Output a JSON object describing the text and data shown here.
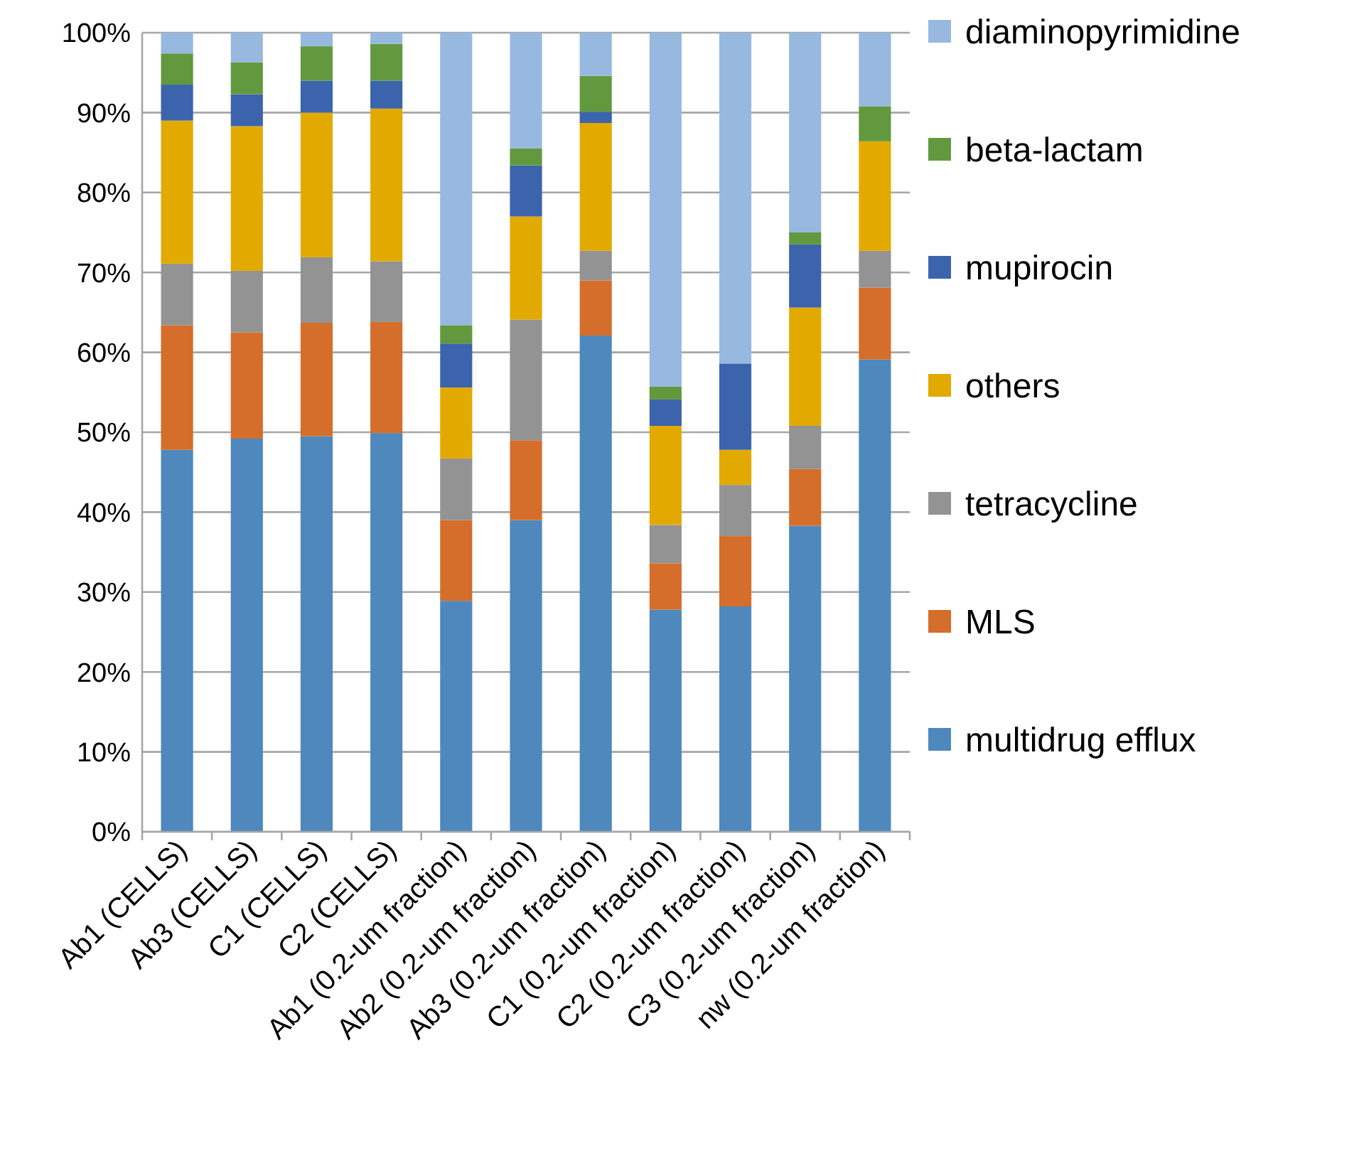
{
  "chart_data": {
    "type": "bar",
    "stacked": true,
    "grid": "y",
    "legend": "right",
    "categories": [
      "Ab1 (CELLS)",
      "Ab3 (CELLS)",
      "C1 (CELLS)",
      "C2 (CELLS)",
      "Ab1 (0.2-um fraction)",
      "Ab2 (0.2-um fraction)",
      "Ab3 (0.2-um fraction)",
      "C1 (0.2-um fraction)",
      "C2 (0.2-um fraction)",
      "C3 (0.2-um fraction)",
      "nw (0.2-um fraction)"
    ],
    "ylim": [
      0,
      1
    ],
    "yticks": [
      {
        "value": 0,
        "label": "0%"
      },
      {
        "value": 0.1,
        "label": "10%"
      },
      {
        "value": 0.2,
        "label": "20%"
      },
      {
        "value": 0.3,
        "label": "30%"
      },
      {
        "value": 0.4,
        "label": "40%"
      },
      {
        "value": 0.5,
        "label": "50%"
      },
      {
        "value": 0.6,
        "label": "60%"
      },
      {
        "value": 0.7,
        "label": "70%"
      },
      {
        "value": 0.8,
        "label": "80%"
      },
      {
        "value": 0.9,
        "label": "90%"
      },
      {
        "value": 1,
        "label": "100%"
      }
    ],
    "series": [
      {
        "name": "multidrug efflux",
        "color": "#4e88bd",
        "values": [
          0.478,
          0.492,
          0.495,
          0.499,
          0.289,
          0.39,
          0.621,
          0.278,
          0.282,
          0.383,
          0.591
        ]
      },
      {
        "name": "MLS",
        "color": "#d46e2a",
        "values": [
          0.156,
          0.133,
          0.142,
          0.139,
          0.101,
          0.1,
          0.069,
          0.058,
          0.088,
          0.071,
          0.09
        ]
      },
      {
        "name": "tetracycline",
        "color": "#939393",
        "values": [
          0.077,
          0.077,
          0.082,
          0.076,
          0.077,
          0.151,
          0.037,
          0.048,
          0.064,
          0.054,
          0.046
        ]
      },
      {
        "name": "others",
        "color": "#e2aa00",
        "values": [
          0.179,
          0.181,
          0.181,
          0.191,
          0.089,
          0.129,
          0.16,
          0.124,
          0.044,
          0.148,
          0.137
        ]
      },
      {
        "name": "mupirocin",
        "color": "#3b64ad",
        "values": [
          0.045,
          0.04,
          0.04,
          0.035,
          0.055,
          0.064,
          0.014,
          0.033,
          0.108,
          0.079,
          0
        ]
      },
      {
        "name": "beta-lactam",
        "color": "#62993e",
        "values": [
          0.039,
          0.04,
          0.043,
          0.046,
          0.023,
          0.021,
          0.045,
          0.016,
          0,
          0.015,
          0.044
        ]
      },
      {
        "name": "diaminopyrimidine",
        "color": "#97b9e0",
        "values": [
          0.026,
          0.037,
          0.017,
          0.014,
          0.366,
          0.145,
          0.054,
          0.443,
          0.414,
          0.25,
          0.092
        ]
      }
    ]
  }
}
